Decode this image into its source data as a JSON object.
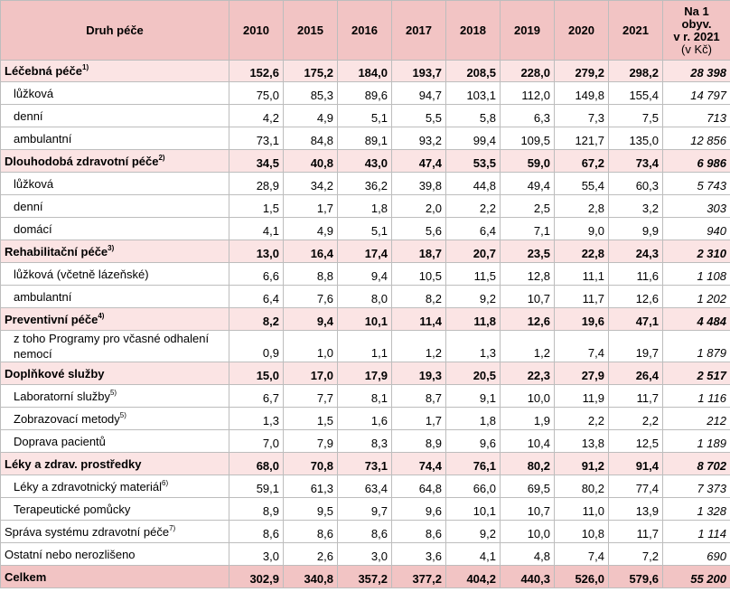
{
  "header": {
    "category": "Druh péče",
    "years": [
      "2010",
      "2015",
      "2016",
      "2017",
      "2018",
      "2019",
      "2020",
      "2021"
    ],
    "per_capita_line1": "Na 1",
    "per_capita_line2": "obyv.",
    "per_capita_line3": "v r. 2021",
    "per_capita_line4": "(v Kč)"
  },
  "rows": [
    {
      "label": "Léčebná péče",
      "sup": "1)",
      "type": "main",
      "values": [
        "152,6",
        "175,2",
        "184,0",
        "193,7",
        "208,5",
        "228,0",
        "279,2",
        "298,2"
      ],
      "per_capita": "28 398"
    },
    {
      "label": "lůžková",
      "sup": "",
      "type": "sub",
      "values": [
        "75,0",
        "85,3",
        "89,6",
        "94,7",
        "103,1",
        "112,0",
        "149,8",
        "155,4"
      ],
      "per_capita": "14 797"
    },
    {
      "label": "denní",
      "sup": "",
      "type": "sub",
      "values": [
        "4,2",
        "4,9",
        "5,1",
        "5,5",
        "5,8",
        "6,3",
        "7,3",
        "7,5"
      ],
      "per_capita": "713"
    },
    {
      "label": "ambulantní",
      "sup": "",
      "type": "sub",
      "values": [
        "73,1",
        "84,8",
        "89,1",
        "93,2",
        "99,4",
        "109,5",
        "121,7",
        "135,0"
      ],
      "per_capita": "12 856"
    },
    {
      "label": "Dlouhodobá zdravotní péče",
      "sup": "2)",
      "type": "main",
      "values": [
        "34,5",
        "40,8",
        "43,0",
        "47,4",
        "53,5",
        "59,0",
        "67,2",
        "73,4"
      ],
      "per_capita": "6 986"
    },
    {
      "label": "lůžková",
      "sup": "",
      "type": "sub",
      "values": [
        "28,9",
        "34,2",
        "36,2",
        "39,8",
        "44,8",
        "49,4",
        "55,4",
        "60,3"
      ],
      "per_capita": "5 743"
    },
    {
      "label": "denní",
      "sup": "",
      "type": "sub",
      "values": [
        "1,5",
        "1,7",
        "1,8",
        "2,0",
        "2,2",
        "2,5",
        "2,8",
        "3,2"
      ],
      "per_capita": "303"
    },
    {
      "label": "domácí",
      "sup": "",
      "type": "sub",
      "values": [
        "4,1",
        "4,9",
        "5,1",
        "5,6",
        "6,4",
        "7,1",
        "9,0",
        "9,9"
      ],
      "per_capita": "940"
    },
    {
      "label": "Rehabilitační péče",
      "sup": "3)",
      "type": "main",
      "values": [
        "13,0",
        "16,4",
        "17,4",
        "18,7",
        "20,7",
        "23,5",
        "22,8",
        "24,3"
      ],
      "per_capita": "2 310"
    },
    {
      "label": "lůžková (včetně lázeňské)",
      "sup": "",
      "type": "sub",
      "values": [
        "6,6",
        "8,8",
        "9,4",
        "10,5",
        "11,5",
        "12,8",
        "11,1",
        "11,6"
      ],
      "per_capita": "1 108"
    },
    {
      "label": "ambulantní",
      "sup": "",
      "type": "sub",
      "values": [
        "6,4",
        "7,6",
        "8,0",
        "8,2",
        "9,2",
        "10,7",
        "11,7",
        "12,6"
      ],
      "per_capita": "1 202"
    },
    {
      "label": "Preventivní péče",
      "sup": "4)",
      "type": "main",
      "values": [
        "8,2",
        "9,4",
        "10,1",
        "11,4",
        "11,8",
        "12,6",
        "19,6",
        "47,1"
      ],
      "per_capita": "4 484"
    },
    {
      "label": "z toho Programy pro včasné odhalení nemocí",
      "sup": "",
      "type": "sub wrap",
      "values": [
        "0,9",
        "1,0",
        "1,1",
        "1,2",
        "1,3",
        "1,2",
        "7,4",
        "19,7"
      ],
      "per_capita": "1 879"
    },
    {
      "label": "Doplňkové služby",
      "sup": "",
      "type": "main",
      "values": [
        "15,0",
        "17,0",
        "17,9",
        "19,3",
        "20,5",
        "22,3",
        "27,9",
        "26,4"
      ],
      "per_capita": "2 517"
    },
    {
      "label": "Laboratorní služby",
      "sup": "5)",
      "type": "sub",
      "values": [
        "6,7",
        "7,7",
        "8,1",
        "8,7",
        "9,1",
        "10,0",
        "11,9",
        "11,7"
      ],
      "per_capita": "1 116"
    },
    {
      "label": "Zobrazovací metody",
      "sup": "5)",
      "type": "sub",
      "values": [
        "1,3",
        "1,5",
        "1,6",
        "1,7",
        "1,8",
        "1,9",
        "2,2",
        "2,2"
      ],
      "per_capita": "212"
    },
    {
      "label": "Doprava pacientů",
      "sup": "",
      "type": "sub",
      "values": [
        "7,0",
        "7,9",
        "8,3",
        "8,9",
        "9,6",
        "10,4",
        "13,8",
        "12,5"
      ],
      "per_capita": "1 189"
    },
    {
      "label": "Léky a zdrav. prostředky",
      "sup": "",
      "type": "main",
      "values": [
        "68,0",
        "70,8",
        "73,1",
        "74,4",
        "76,1",
        "80,2",
        "91,2",
        "91,4"
      ],
      "per_capita": "8 702"
    },
    {
      "label": "Léky a zdravotnický materiál",
      "sup": "6)",
      "type": "sub",
      "values": [
        "59,1",
        "61,3",
        "63,4",
        "64,8",
        "66,0",
        "69,5",
        "80,2",
        "77,4"
      ],
      "per_capita": "7 373"
    },
    {
      "label": "Terapeutické pomůcky",
      "sup": "",
      "type": "sub",
      "values": [
        "8,9",
        "9,5",
        "9,7",
        "9,6",
        "10,1",
        "10,7",
        "11,0",
        "13,9"
      ],
      "per_capita": "1 328"
    },
    {
      "label": "Správa systému zdravotní péče",
      "sup": "7)",
      "type": "plain",
      "values": [
        "8,6",
        "8,6",
        "8,6",
        "8,6",
        "9,2",
        "10,0",
        "10,8",
        "11,7"
      ],
      "per_capita": "1 114"
    },
    {
      "label": "Ostatní nebo nerozlišeno",
      "sup": "",
      "type": "plain",
      "values": [
        "3,0",
        "2,6",
        "3,0",
        "3,6",
        "4,1",
        "4,8",
        "7,4",
        "7,2"
      ],
      "per_capita": "690"
    },
    {
      "label": "Celkem",
      "sup": "",
      "type": "total",
      "values": [
        "302,9",
        "340,8",
        "357,2",
        "377,2",
        "404,2",
        "440,3",
        "526,0",
        "579,6"
      ],
      "per_capita": "55 200"
    }
  ]
}
